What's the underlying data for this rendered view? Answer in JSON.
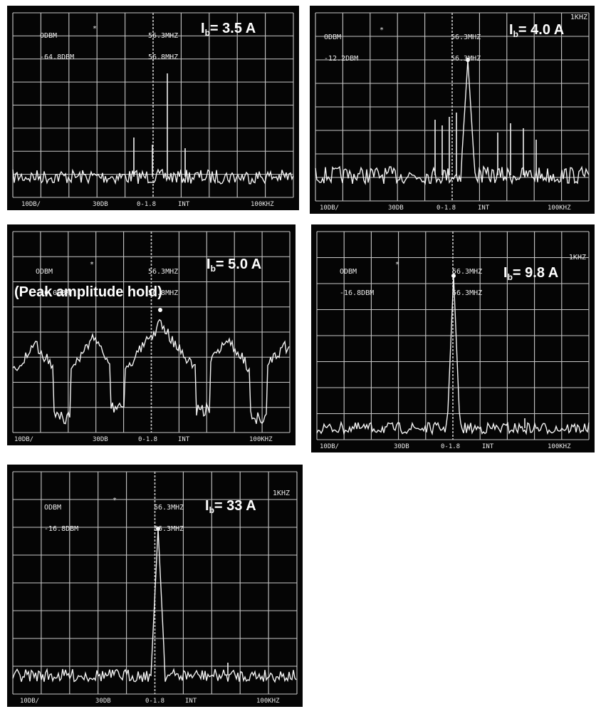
{
  "panels": [
    {
      "ref_level": "ODBM",
      "ref_value": "-64.8DBM",
      "marker": "*",
      "freq_line1": "56.3MHZ",
      "freq_line2": "56.8MHZ",
      "rbw": "",
      "current_var": "I",
      "current_sub": "b",
      "current_value": "= 3.5 A",
      "note": "",
      "footer": [
        "10DB/",
        "30DB",
        "0-1.8",
        "INT",
        "100KHZ"
      ]
    },
    {
      "ref_level": "ODBM",
      "ref_value": "-12.2DBM",
      "marker": "*",
      "freq_line1": "56.3MHZ",
      "freq_line2": "56.3MHZ",
      "rbw": "1KHZ",
      "current_var": "I",
      "current_sub": "b",
      "current_value": "= 4.0 A",
      "note": "",
      "footer": [
        "10DB/",
        "30DB",
        "0-1.8",
        "INT",
        "100KHZ"
      ]
    },
    {
      "ref_level": "ODBM",
      "ref_value": "-16.0DBM",
      "marker": "*",
      "freq_line1": "56.3MHZ",
      "freq_line2": "56.8MHZ",
      "rbw": "",
      "current_var": "I",
      "current_sub": "b",
      "current_value": "= 5.0 A",
      "note": "(Peak amplitude hold)",
      "footer": [
        "10DB/",
        "30DB",
        "0-1.8",
        "INT",
        "100KHZ"
      ]
    },
    {
      "ref_level": "ODBM",
      "ref_value": "-16.8DBM",
      "marker": "*",
      "freq_line1": "56.3MHZ",
      "freq_line2": "56.3MHZ",
      "rbw": "1KHZ",
      "current_var": "I",
      "current_sub": "b",
      "current_value": "= 9.8 A",
      "note": "",
      "footer": [
        "10DB/",
        "30DB",
        "0-1.8",
        "INT",
        "100KHZ"
      ]
    },
    {
      "ref_level": "ODBM",
      "ref_value": "-16.8DBM",
      "marker": "*",
      "freq_line1": "56.3MHZ",
      "freq_line2": "56.3MHZ",
      "rbw": "1KHZ",
      "current_var": "I",
      "current_sub": "b",
      "current_value": "= 33 A",
      "note": "",
      "footer": [
        "10DB/",
        "30DB",
        "0-1.8",
        "INT",
        "100KHZ"
      ]
    }
  ]
}
